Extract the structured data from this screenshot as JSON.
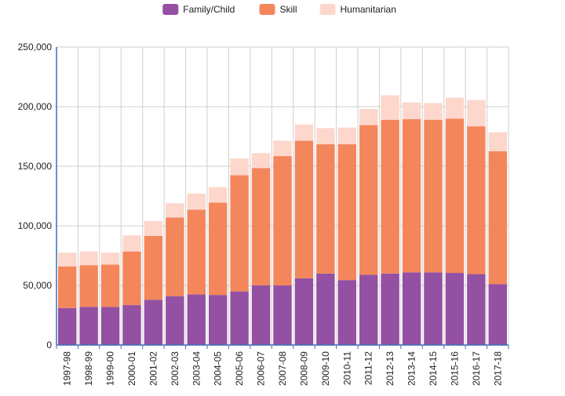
{
  "colors": {
    "family": "#9450a2",
    "skill": "#f4865c",
    "humanitarian": "#fdd7cb",
    "grid": "#cfcfcf",
    "axis": "#3c6fb6",
    "text": "#222222"
  },
  "chart_data": {
    "type": "bar",
    "stacked": true,
    "legend_position": "top-center",
    "grid": true,
    "ylim": [
      0,
      250000
    ],
    "yticks": [
      0,
      50000,
      100000,
      150000,
      200000,
      250000
    ],
    "ytick_labels": [
      "0",
      "50,000",
      "100,000",
      "150,000",
      "200,000",
      "250,000"
    ],
    "categories": [
      "1997-98",
      "1998-99",
      "1999-00",
      "2000-01",
      "2001-02",
      "2002-03",
      "2003-04",
      "2004-05",
      "2005-06",
      "2006-07",
      "2007-08",
      "2008-09",
      "2009-10",
      "2010-11",
      "2011-12",
      "2012-13",
      "2013-14",
      "2014-15",
      "2015-16",
      "2016-17",
      "2017-18"
    ],
    "series": [
      {
        "name": "Family/Child",
        "color_key": "family",
        "values": [
          31000,
          32000,
          32000,
          33500,
          38000,
          41000,
          42500,
          42000,
          45000,
          50000,
          50000,
          56000,
          60000,
          54500,
          59000,
          60000,
          61000,
          61000,
          60500,
          59500,
          51000
        ]
      },
      {
        "name": "Skill",
        "color_key": "skill",
        "values": [
          35000,
          35000,
          35500,
          45000,
          53500,
          66000,
          71000,
          77500,
          97500,
          98500,
          108500,
          115500,
          108500,
          114000,
          125500,
          129000,
          128500,
          128000,
          129500,
          124000,
          111500
        ]
      },
      {
        "name": "Humanitarian",
        "color_key": "humanitarian",
        "values": [
          11500,
          11500,
          10000,
          13500,
          12500,
          12000,
          13500,
          13000,
          14000,
          12500,
          13000,
          13500,
          13500,
          14000,
          13500,
          20500,
          14000,
          14000,
          17500,
          22000,
          16000
        ]
      }
    ]
  }
}
